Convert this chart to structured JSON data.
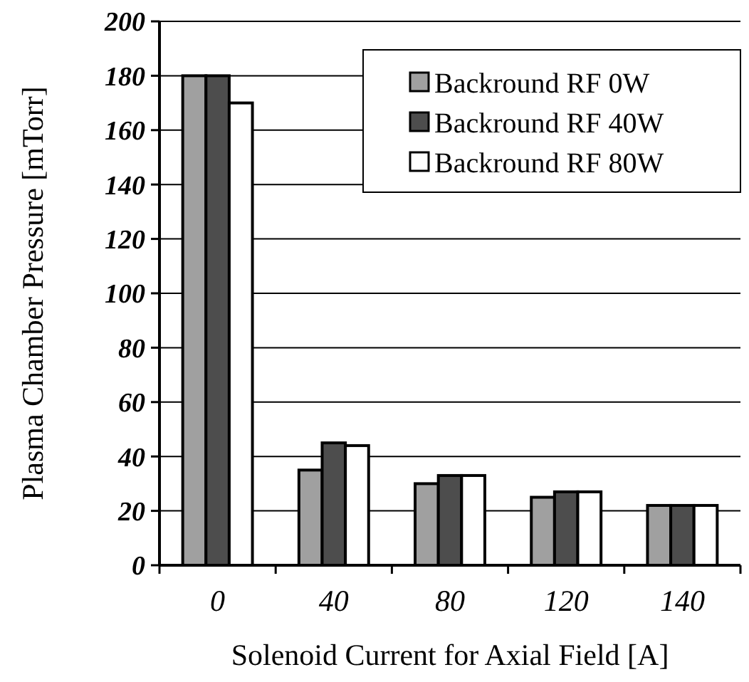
{
  "chart_data": {
    "type": "bar",
    "xlabel": "Solenoid Current for Axial Field [A]",
    "ylabel": "Plasma Chamber Pressure [mTorr]",
    "categories": [
      "0",
      "40",
      "80",
      "120",
      "140"
    ],
    "series": [
      {
        "name": "Backround RF 0W",
        "color": "#a0a0a0",
        "values": [
          180,
          35,
          30,
          25,
          22
        ]
      },
      {
        "name": "Backround RF 40W",
        "color": "#4d4d4d",
        "values": [
          180,
          45,
          33,
          27,
          22
        ]
      },
      {
        "name": "Backround RF 80W",
        "color": "#ffffff",
        "values": [
          170,
          44,
          33,
          27,
          22
        ]
      }
    ],
    "ylim": [
      0,
      200
    ],
    "yticks": [
      0,
      20,
      40,
      60,
      80,
      100,
      120,
      140,
      160,
      180,
      200
    ],
    "grid": "y",
    "legend": "top right"
  }
}
